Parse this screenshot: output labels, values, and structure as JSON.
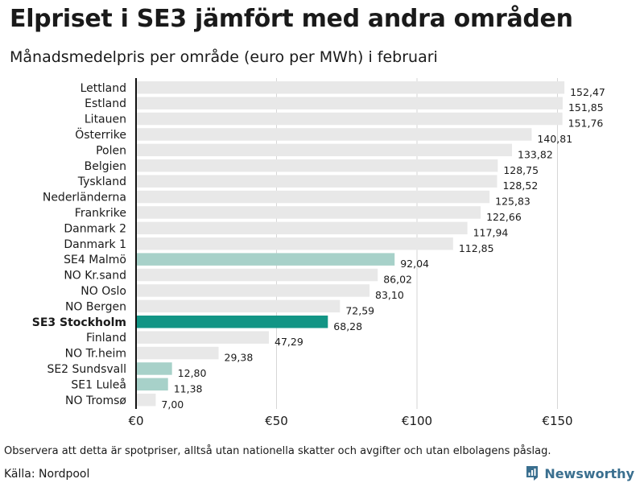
{
  "title": "Elpriset i SE3 jämfört med andra områden",
  "subtitle": "Månadsmedelpris per område (euro per MWh) i februari",
  "footnote": "Observera att detta är spotpriser, alltså utan nationella skatter och avgifter och utan elbolagens påslag.",
  "source": "Källa: Nordpool",
  "brand": {
    "name": "Newsworthy",
    "icon": "newsworthy-logo-icon"
  },
  "colors": {
    "default": "#e8e8e8",
    "highlight": "#129585",
    "swedish": "#a7d1c9"
  },
  "chart_data": {
    "type": "bar",
    "orientation": "horizontal",
    "title": "Elpriset i SE3 jämfört med andra områden",
    "subtitle": "Månadsmedelpris per område (euro per MWh) i februari",
    "xlabel": "",
    "ylabel": "",
    "xlim": [
      0,
      175
    ],
    "xticks": [
      0,
      50,
      100,
      150
    ],
    "xtick_labels": [
      "€0",
      "€50",
      "€100",
      "€150"
    ],
    "grid": true,
    "highlight_category": "SE3 Stockholm",
    "categories": [
      "Lettland",
      "Estland",
      "Litauen",
      "Österrike",
      "Polen",
      "Belgien",
      "Tyskland",
      "Nederländerna",
      "Frankrike",
      "Danmark 2",
      "Danmark 1",
      "SE4 Malmö",
      "NO Kr.sand",
      "NO Oslo",
      "NO Bergen",
      "SE3 Stockholm",
      "Finland",
      "NO Tr.heim",
      "SE2 Sundsvall",
      "SE1 Luleå",
      "NO Tromsø"
    ],
    "values": [
      152.47,
      151.85,
      151.76,
      140.81,
      133.82,
      128.75,
      128.52,
      125.83,
      122.66,
      117.94,
      112.85,
      92.04,
      86.02,
      83.1,
      72.59,
      68.28,
      47.29,
      29.38,
      12.8,
      11.38,
      7.0
    ],
    "value_labels": [
      "152,47",
      "151,85",
      "151,76",
      "140,81",
      "133,82",
      "128,75",
      "128,52",
      "125,83",
      "122,66",
      "117,94",
      "112,85",
      "92,04",
      "86,02",
      "83,10",
      "72,59",
      "68,28",
      "47,29",
      "29,38",
      "12,80",
      "11,38",
      "7,00"
    ],
    "bar_style": [
      "default",
      "default",
      "default",
      "default",
      "default",
      "default",
      "default",
      "default",
      "default",
      "default",
      "default",
      "swedish",
      "default",
      "default",
      "default",
      "highlight",
      "default",
      "default",
      "swedish",
      "swedish",
      "default"
    ]
  }
}
